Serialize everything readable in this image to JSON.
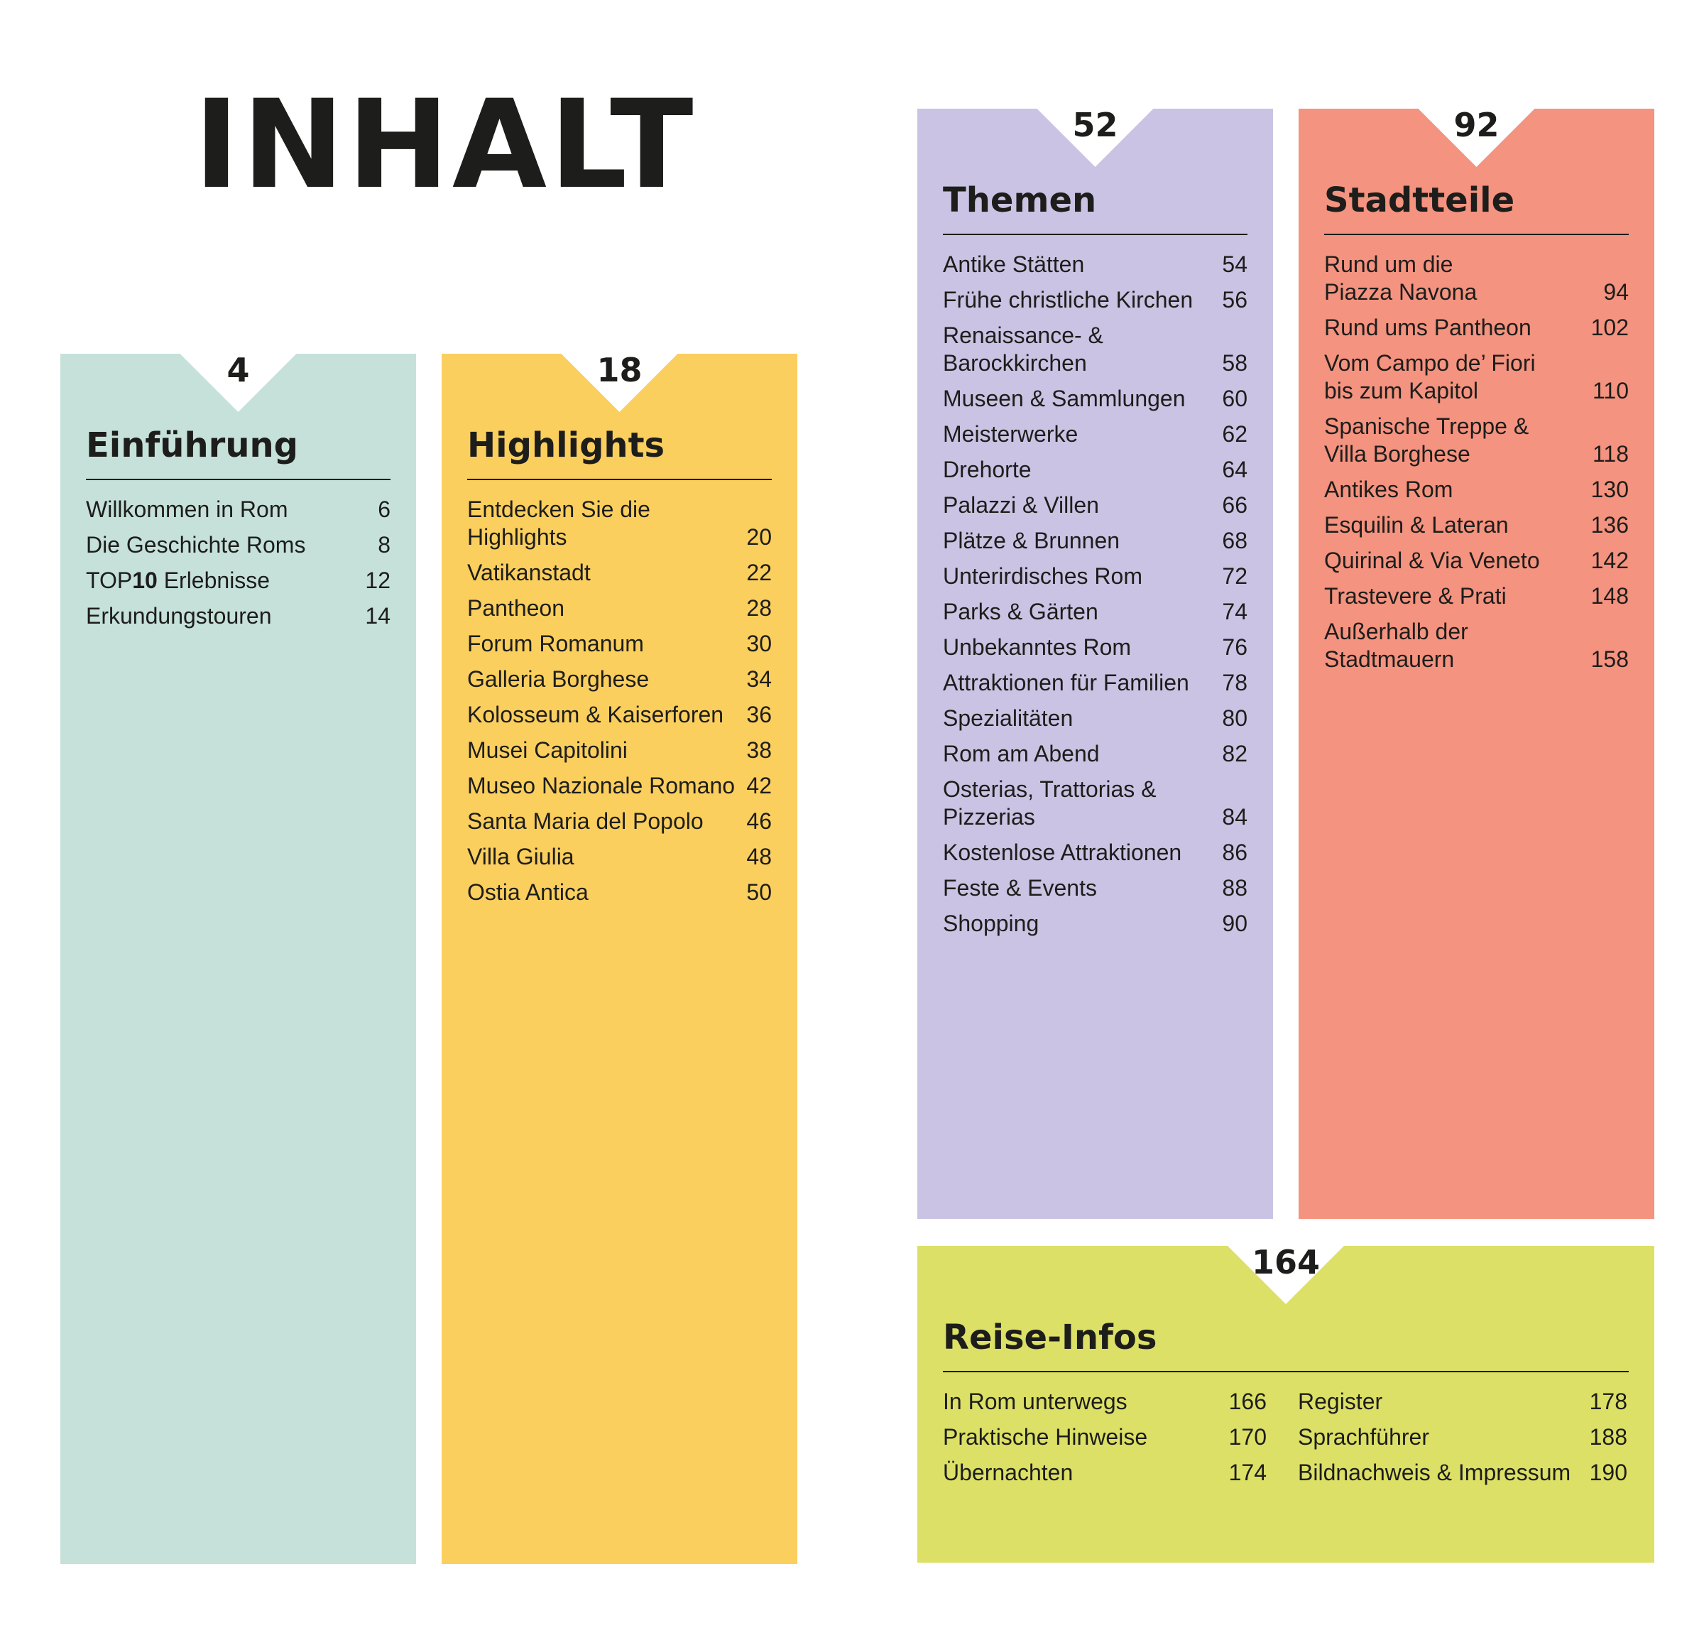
{
  "page": {
    "title": "INHALT"
  },
  "sections": {
    "einfuehrung": {
      "page": "4",
      "title": "Einführung",
      "color": "#c5e1da",
      "entries": [
        {
          "label": "Willkommen in Rom",
          "page": "6"
        },
        {
          "label": "Die Geschichte Roms",
          "page": "8"
        },
        {
          "label_prefix": "TOP",
          "label_bold": "10",
          "label_suffix": " Erlebnisse",
          "page": "12"
        },
        {
          "label": "Erkundungstouren",
          "page": "14"
        }
      ]
    },
    "highlights": {
      "page": "18",
      "title": "Highlights",
      "color": "#fbcf5e",
      "entries": [
        {
          "label": "Entdecken Sie die\n   Highlights",
          "page": "20"
        },
        {
          "label": "Vatikanstadt",
          "page": "22"
        },
        {
          "label": "Pantheon",
          "page": "28"
        },
        {
          "label": "Forum Romanum",
          "page": "30"
        },
        {
          "label": "Galleria Borghese",
          "page": "34"
        },
        {
          "label": "Kolosseum & Kaiserforen",
          "page": "36"
        },
        {
          "label": "Musei Capitolini",
          "page": "38"
        },
        {
          "label": "Museo Nazionale Romano",
          "page": "42"
        },
        {
          "label": "Santa Maria del Popolo",
          "page": "46"
        },
        {
          "label": "Villa Giulia",
          "page": "48"
        },
        {
          "label": "Ostia Antica",
          "page": "50"
        }
      ]
    },
    "themen": {
      "page": "52",
      "title": "Themen",
      "color": "#cac3e3",
      "entries": [
        {
          "label": "Antike Stätten",
          "page": "54"
        },
        {
          "label": "Frühe christliche Kirchen",
          "page": "56"
        },
        {
          "label": "Renaissance- &\n   Barockkirchen",
          "page": "58"
        },
        {
          "label": "Museen & Sammlungen",
          "page": "60"
        },
        {
          "label": "Meisterwerke",
          "page": "62"
        },
        {
          "label": "Drehorte",
          "page": "64"
        },
        {
          "label": "Palazzi & Villen",
          "page": "66"
        },
        {
          "label": "Plätze & Brunnen",
          "page": "68"
        },
        {
          "label": "Unterirdisches Rom",
          "page": "72"
        },
        {
          "label": "Parks & Gärten",
          "page": "74"
        },
        {
          "label": "Unbekanntes Rom",
          "page": "76"
        },
        {
          "label": "Attraktionen für Familien",
          "page": "78"
        },
        {
          "label": "Spezialitäten",
          "page": "80"
        },
        {
          "label": "Rom am Abend",
          "page": "82"
        },
        {
          "label": "Osterias, Trattorias &\n   Pizzerias",
          "page": "84"
        },
        {
          "label": "Kostenlose Attraktionen",
          "page": "86"
        },
        {
          "label": "Feste & Events",
          "page": "88"
        },
        {
          "label": "Shopping",
          "page": "90"
        }
      ]
    },
    "stadtteile": {
      "page": "92",
      "title": "Stadtteile",
      "color": "#f4937f",
      "entries": [
        {
          "label": "Rund um die\n   Piazza Navona",
          "page": "94"
        },
        {
          "label": "Rund ums Pantheon",
          "page": "102"
        },
        {
          "label": "Vom Campo de’ Fiori\n   bis zum Kapitol",
          "page": "110"
        },
        {
          "label": "Spanische Treppe &\n   Villa Borghese",
          "page": "118"
        },
        {
          "label": "Antikes Rom",
          "page": "130"
        },
        {
          "label": "Esquilin & Lateran",
          "page": "136"
        },
        {
          "label": "Quirinal & Via Veneto",
          "page": "142"
        },
        {
          "label": "Trastevere & Prati",
          "page": "148"
        },
        {
          "label": "Außerhalb der\n   Stadtmauern",
          "page": "158"
        }
      ]
    },
    "reiseinfos": {
      "page": "164",
      "title": "Reise-Infos",
      "color": "#dce066",
      "entries_left": [
        {
          "label": "In Rom unterwegs",
          "page": "166"
        },
        {
          "label": "Praktische Hinweise",
          "page": "170"
        },
        {
          "label": "Übernachten",
          "page": "174"
        }
      ],
      "entries_right": [
        {
          "label": "Register",
          "page": "178"
        },
        {
          "label": "Sprachführer",
          "page": "188"
        },
        {
          "label": "Bildnachweis & Impressum",
          "page": "190"
        }
      ]
    }
  }
}
